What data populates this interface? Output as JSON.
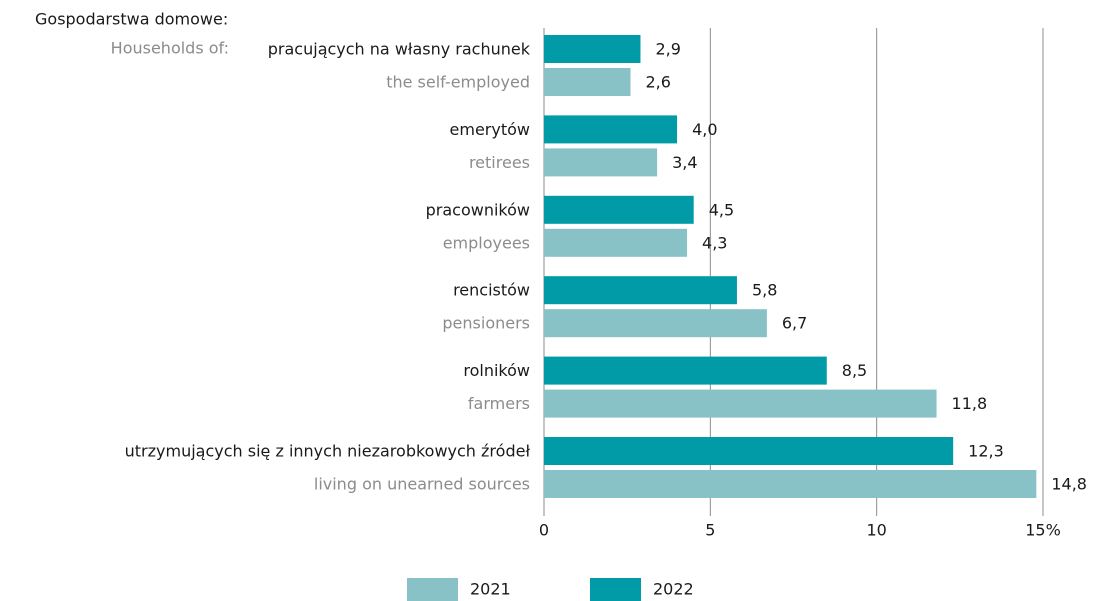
{
  "chart_data": {
    "type": "bar",
    "orientation": "horizontal",
    "title": "Gospodarstwa domowe:",
    "subtitle": "Households of:",
    "categories": [
      "pracujących na własny rachunek",
      "emerytów",
      "pracowników",
      "rencistów",
      "rolników",
      "utrzymujących się z innych niezarobkowych źródeł"
    ],
    "categories_en": [
      "the self-employed",
      "retirees",
      "employees",
      "pensioners",
      "farmers",
      "living on unearned sources"
    ],
    "series": [
      {
        "name": "2022",
        "color": "#009ba6",
        "values": [
          2.9,
          4.0,
          4.5,
          5.8,
          8.5,
          12.3
        ],
        "value_labels": [
          "2,9",
          "4,0",
          "4,5",
          "5,8",
          "8,5",
          "12,3"
        ]
      },
      {
        "name": "2021",
        "color": "#88c1c6",
        "values": [
          2.6,
          3.4,
          4.3,
          6.7,
          11.8,
          14.8
        ],
        "value_labels": [
          "2,6",
          "3,4",
          "4,3",
          "6,7",
          "11,8",
          "14,8"
        ]
      }
    ],
    "xlim": [
      0,
      15
    ],
    "xticks": [
      0,
      5,
      10,
      {
        "value": 15,
        "label": "15%"
      }
    ],
    "grid": true,
    "legend_order": [
      "2021",
      "2022"
    ]
  }
}
